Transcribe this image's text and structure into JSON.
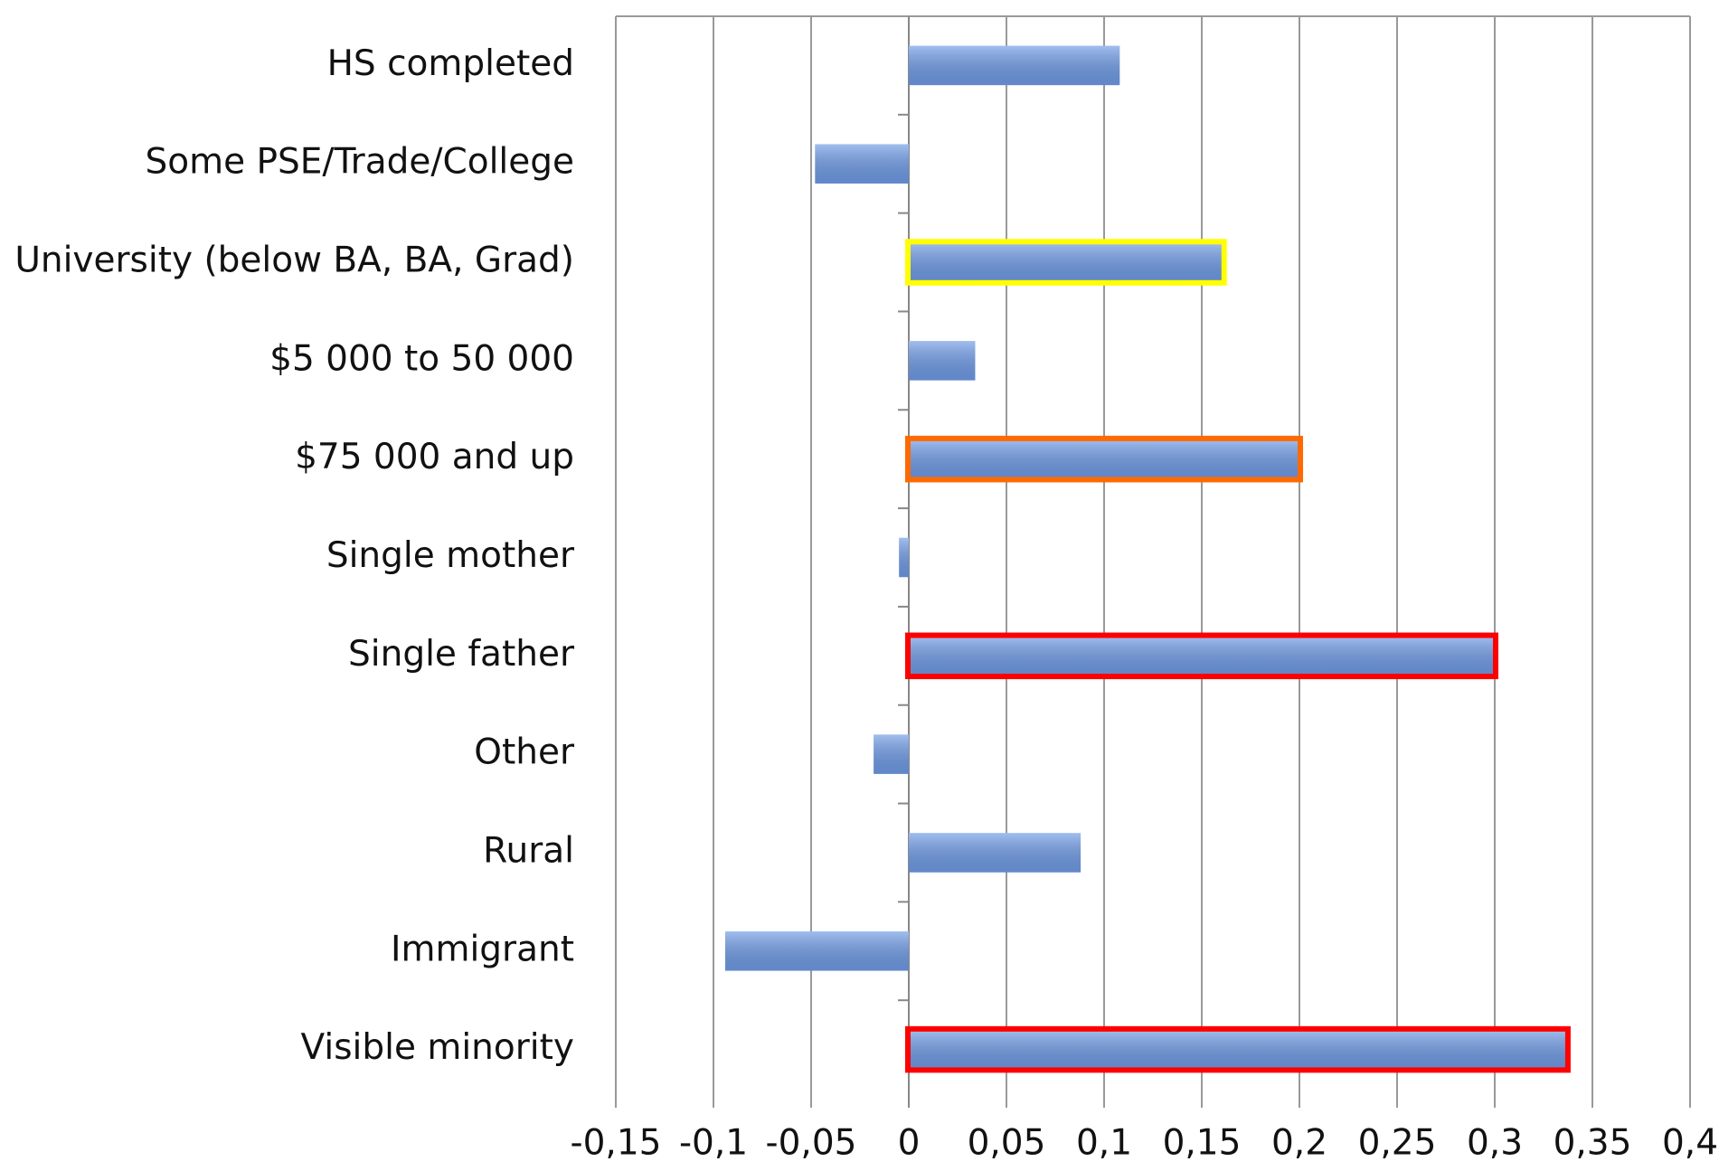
{
  "chart_data": {
    "type": "hbar",
    "categories": [
      "HS completed",
      "Some PSE/Trade/College",
      "University (below BA, BA, Grad)",
      "$5 000 to 50 000",
      "$75 000  and up",
      "Single mother",
      "Single father",
      "Other",
      "Rural",
      "Immigrant",
      "Visible minority"
    ],
    "values": [
      0.108,
      -0.048,
      0.161,
      0.034,
      0.2,
      -0.005,
      0.3,
      -0.018,
      0.088,
      -0.094,
      0.337
    ],
    "color": "#6f9be6",
    "outline_colors": [
      null,
      null,
      "#ffff00",
      null,
      "#ff6a00",
      null,
      "#ff0000",
      null,
      null,
      null,
      "#ff0000"
    ],
    "xlim": [
      -0.15,
      0.4
    ],
    "xticks": [
      {
        "value": -0.15,
        "label": "-0,15"
      },
      {
        "value": -0.1,
        "label": "-0,1"
      },
      {
        "value": -0.05,
        "label": "-0,05"
      },
      0,
      {
        "value": 0.05,
        "label": "0,05"
      },
      {
        "value": 0.1,
        "label": "0,1"
      },
      {
        "value": 0.15,
        "label": "0,15"
      },
      {
        "value": 0.2,
        "label": "0,2"
      },
      {
        "value": 0.25,
        "label": "0,25"
      },
      {
        "value": 0.3,
        "label": "0,3"
      },
      {
        "value": 0.35,
        "label": "0,35"
      },
      {
        "value": 0.4,
        "label": "0,4"
      }
    ],
    "grid": true
  }
}
